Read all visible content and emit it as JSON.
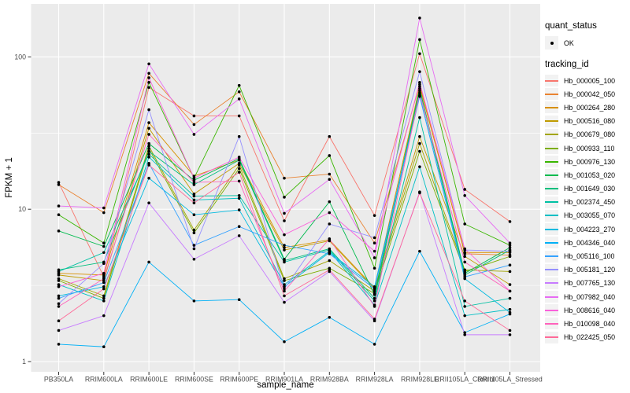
{
  "style": {
    "background": "#FFFFFF",
    "panel_bg": "#EBEBEB",
    "grid_color": "#FFFFFF",
    "point_color": "#000000",
    "axis_text_color": "#4D4D4D",
    "tick_mark_color": "#333333",
    "legend_key_bg": "#F2F2F2"
  },
  "chart_data": {
    "type": "line",
    "title": "",
    "xlabel": "sample_name",
    "ylabel": "FPKM + 1",
    "y_scale": "log10",
    "y_ticks": [
      1,
      10,
      100
    ],
    "y_minor_ticks": [
      3.1623,
      31.623
    ],
    "ylim": [
      1,
      200
    ],
    "grid": "on",
    "legend_position": "right",
    "point_legend": {
      "title": "quant_status",
      "items": [
        {
          "label": "OK",
          "marker": "black-point"
        }
      ]
    },
    "series_legend_title": "tracking_id",
    "x_categories": [
      "PB350LA",
      "RRIM600LA",
      "RRIM600LE",
      "RRIM600SE",
      "RRIM600PE",
      "RRIM901LA",
      "RRIM928BA",
      "RRIM928LA",
      "RRIM928LE",
      "RRII105LA_Control",
      "RRII105LA_Stressed"
    ],
    "series": [
      {
        "name": "Hb_000005_100",
        "color": "#F8766D",
        "values": [
          15,
          3.6,
          63,
          41,
          41,
          8.4,
          30,
          9.1,
          105,
          13.5,
          8.3
        ]
      },
      {
        "name": "Hb_000042_050",
        "color": "#EA8331",
        "values": [
          14.5,
          9.5,
          78,
          36,
          59,
          16,
          17,
          6.0,
          66,
          5.1,
          5.0
        ]
      },
      {
        "name": "Hb_000264_280",
        "color": "#D89000",
        "values": [
          3.8,
          3.7,
          37,
          16.5,
          21,
          5.6,
          6.3,
          3.05,
          64,
          5.2,
          5.2
        ]
      },
      {
        "name": "Hb_000516_080",
        "color": "#C09B00",
        "values": [
          3.7,
          3.4,
          34,
          12.6,
          20,
          5.4,
          6.2,
          3.0,
          30,
          4.9,
          3.2
        ]
      },
      {
        "name": "Hb_000679_080",
        "color": "#A3A500",
        "values": [
          3.5,
          2.7,
          26,
          7.3,
          19.5,
          3.5,
          4.6,
          2.9,
          27,
          4.0,
          3.9
        ]
      },
      {
        "name": "Hb_000933_110",
        "color": "#7CAE00",
        "values": [
          3.4,
          2.6,
          25,
          7.0,
          18.5,
          3.4,
          4.1,
          2.8,
          24,
          3.9,
          4.9
        ]
      },
      {
        "name": "Hb_000976_130",
        "color": "#39B600",
        "values": [
          9.2,
          6.0,
          68,
          16,
          65,
          12,
          22.5,
          4.1,
          130,
          8.0,
          5.8
        ]
      },
      {
        "name": "Hb_001053_020",
        "color": "#00BB4E",
        "values": [
          7.2,
          5.7,
          27,
          15.5,
          21.5,
          4.7,
          11.2,
          2.75,
          62,
          3.8,
          5.6
        ]
      },
      {
        "name": "Hb_001649_030",
        "color": "#00BF7D",
        "values": [
          4.0,
          4.5,
          24,
          14.5,
          21,
          4.6,
          5.5,
          2.6,
          60,
          3.7,
          5.4
        ]
      },
      {
        "name": "Hb_002374_450",
        "color": "#00C1A3",
        "values": [
          3.9,
          5.2,
          23,
          12.2,
          12.3,
          4.5,
          5.4,
          2.5,
          40,
          2.3,
          2.6
        ]
      },
      {
        "name": "Hb_003055_070",
        "color": "#00BFC4",
        "values": [
          3.2,
          2.5,
          22,
          11.5,
          11.8,
          3.2,
          5.3,
          2.35,
          19,
          2.0,
          2.2
        ]
      },
      {
        "name": "Hb_004223_270",
        "color": "#00BAE0",
        "values": [
          2.7,
          3.1,
          16,
          9.2,
          9.9,
          3.1,
          5.2,
          3.1,
          56,
          3.5,
          2.1
        ]
      },
      {
        "name": "Hb_004346_040",
        "color": "#00B0F6",
        "values": [
          1.3,
          1.25,
          4.5,
          2.5,
          2.55,
          1.35,
          1.95,
          1.3,
          5.3,
          1.55,
          2.05
        ]
      },
      {
        "name": "Hb_005116_100",
        "color": "#35A2FF",
        "values": [
          2.6,
          3.3,
          20,
          5.8,
          7.7,
          5.8,
          5.1,
          3.0,
          55,
          3.6,
          4.3
        ]
      },
      {
        "name": "Hb_005181_120",
        "color": "#9590FF",
        "values": [
          2.4,
          4.4,
          45,
          5.5,
          30,
          3.0,
          8.0,
          6.5,
          80,
          5.4,
          5.3
        ]
      },
      {
        "name": "Hb_007765_130",
        "color": "#C77CFF",
        "values": [
          1.6,
          2.0,
          11,
          4.7,
          6.7,
          2.45,
          3.9,
          1.85,
          13,
          1.5,
          1.5
        ]
      },
      {
        "name": "Hb_007982_040",
        "color": "#E76BF3",
        "values": [
          10.5,
          10.2,
          90,
          31,
          53,
          9.4,
          15.7,
          4.8,
          180,
          12.3,
          6.0
        ]
      },
      {
        "name": "Hb_008616_040",
        "color": "#FA62DB",
        "values": [
          3.1,
          3.8,
          73,
          16,
          22,
          6.8,
          9.5,
          5.3,
          68,
          5.5,
          2.9
        ]
      },
      {
        "name": "Hb_010098_040",
        "color": "#FF62BC",
        "values": [
          2.3,
          3.5,
          31,
          15,
          15.3,
          2.9,
          6.4,
          2.3,
          58,
          4.5,
          2.9
        ]
      },
      {
        "name": "Hb_022425_050",
        "color": "#FF6A98",
        "values": [
          1.85,
          3.0,
          19.5,
          11,
          17.5,
          2.7,
          4.0,
          1.9,
          12.8,
          2.5,
          1.6
        ]
      }
    ]
  }
}
